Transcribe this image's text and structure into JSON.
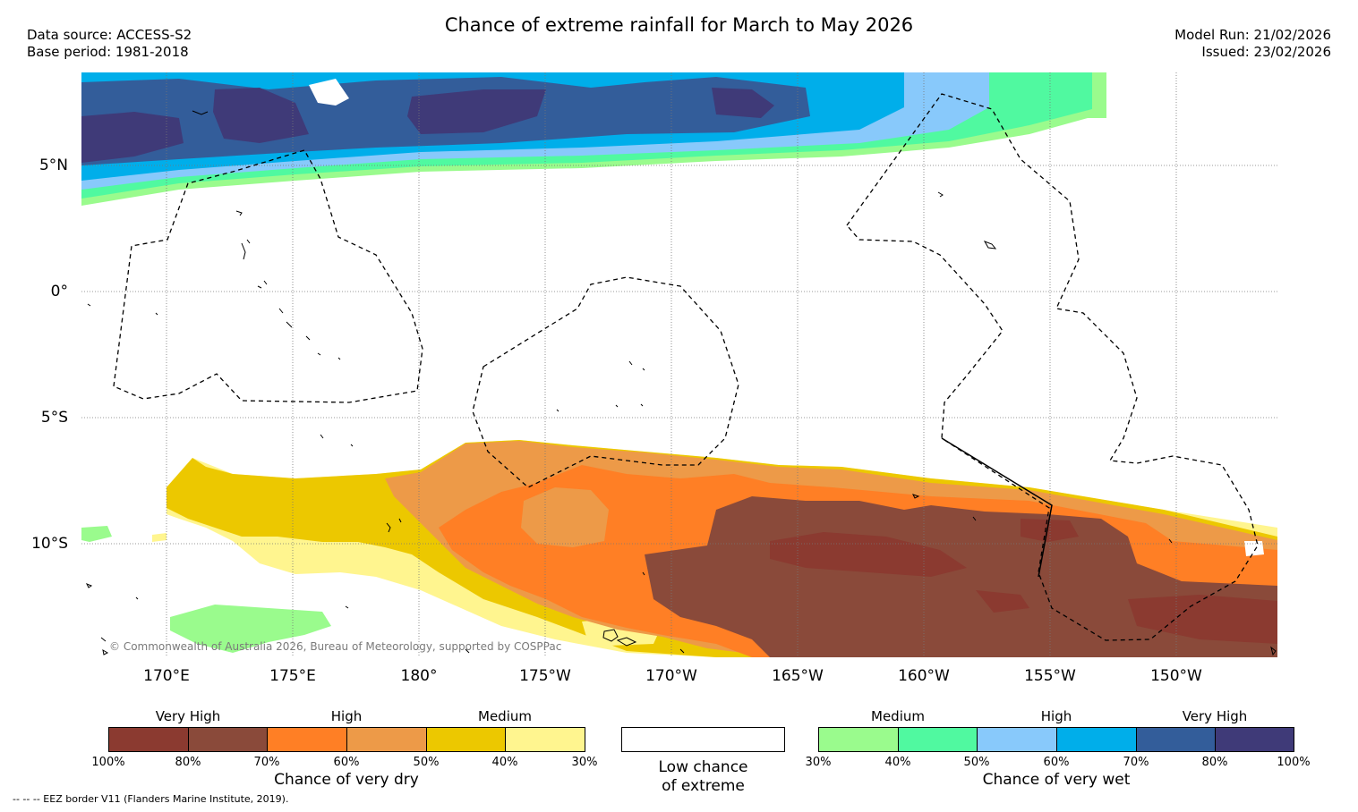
{
  "header": {
    "title": "Chance of extreme rainfall for March to May 2026",
    "data_source": "Data source: ACCESS-S2",
    "base_period": "Base period: 1981-2018",
    "model_run": "Model Run: 21/02/2026",
    "issued": "Issued: 23/02/2026"
  },
  "map": {
    "lat_labels": [
      "5°N",
      "0°",
      "5°S",
      "10°S"
    ],
    "lon_labels": [
      "170°E",
      "175°E",
      "180°",
      "175°W",
      "170°W",
      "165°W",
      "160°W",
      "155°W",
      "150°W"
    ],
    "copyright": "© Commonwealth of Australia 2026, Bureau of Meteorology, supported by COSPPac"
  },
  "colors": {
    "dry_very_high_1": "#8b3a30",
    "dry_very_high_2": "#8a4a3a",
    "dry_high_1": "#ff7f25",
    "dry_high_2": "#ed9a48",
    "dry_medium_1": "#ecc800",
    "dry_medium_2": "#fff58f",
    "wet_medium_1": "#9afb8d",
    "wet_medium_2": "#50f9a0",
    "wet_high_1": "#88c9fb",
    "wet_high_2": "#00aeea",
    "wet_very_high_1": "#335d9a",
    "wet_very_high_2": "#3f3a78"
  },
  "legend": {
    "dry": {
      "groups": [
        "Very High",
        "High",
        "Medium"
      ],
      "ticks": [
        "100%",
        "80%",
        "70%",
        "60%",
        "50%",
        "40%",
        "30%"
      ],
      "title": "Chance of very dry"
    },
    "low": {
      "title_line1": "Low chance",
      "title_line2": "of extreme"
    },
    "wet": {
      "groups": [
        "Medium",
        "High",
        "Very High"
      ],
      "ticks": [
        "30%",
        "40%",
        "50%",
        "60%",
        "70%",
        "80%",
        "100%"
      ],
      "title": "Chance of very wet"
    }
  },
  "footnote": "--  --  -- EEZ border V11 (Flanders Marine Institute, 2019)."
}
